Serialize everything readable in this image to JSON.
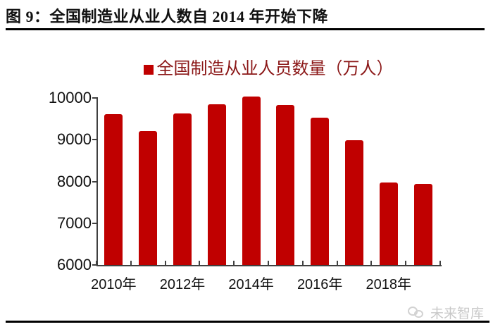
{
  "header": {
    "title": "图 9：全国制造业从业人数自 2014 年开始下降"
  },
  "watermark": {
    "logo_icon": "cloud-bubbles-logo",
    "text": "未来智库",
    "color": "#c9c9c9"
  },
  "colors": {
    "bar": "#c00000",
    "legend_text": "#8b1717",
    "axis": "#404040",
    "title_text": "#111111",
    "rule": "#000000"
  },
  "chart_data": {
    "type": "bar",
    "title": "图 9：全国制造业从业人数自 2014 年开始下降",
    "legend": "全国制造从业人员数量（万人）",
    "legend_position": "top-center",
    "grid": false,
    "categories": [
      "2010",
      "2011",
      "2012",
      "2013",
      "2014",
      "2015",
      "2016",
      "2017",
      "2018",
      "2019"
    ],
    "values": [
      9610,
      9210,
      9630,
      9850,
      10040,
      9830,
      9520,
      8990,
      7970,
      7940
    ],
    "ylabel": "",
    "xlabel": "",
    "ylim": [
      6000,
      10000
    ],
    "yticks": [
      6000,
      7000,
      8000,
      9000,
      10000
    ],
    "xtick_labels": [
      "2010年",
      "2012年",
      "2014年",
      "2016年",
      "2018年"
    ],
    "xtick_category_indices": [
      0,
      2,
      4,
      6,
      8
    ],
    "bar_color": "#c00000",
    "unit": "万人"
  }
}
